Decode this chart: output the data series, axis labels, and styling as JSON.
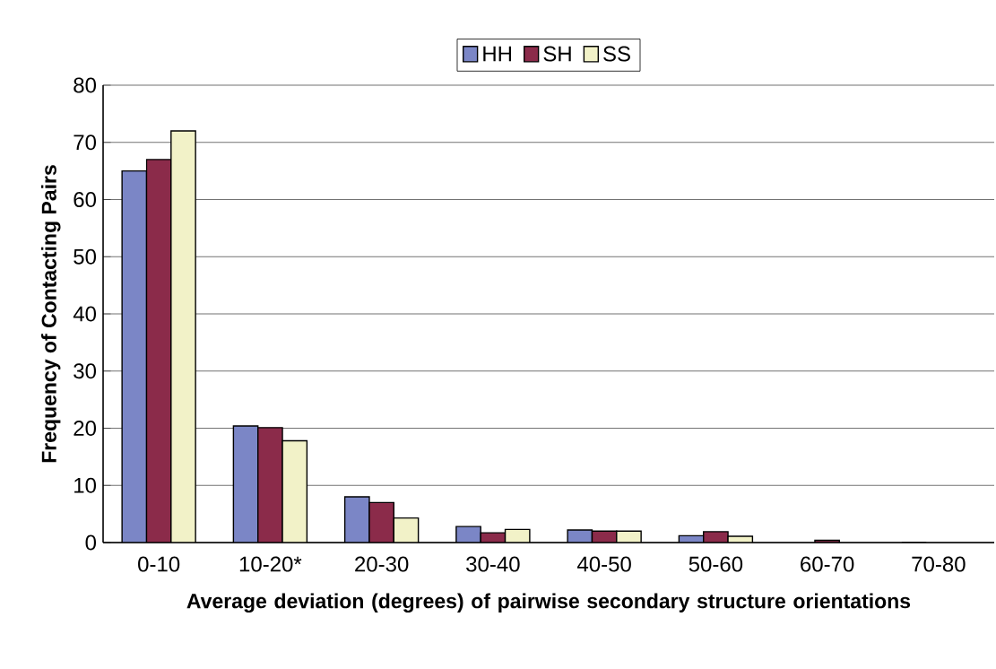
{
  "chart_data": {
    "type": "bar",
    "xlabel": "Average deviation (degrees) of pairwise secondary structure orientations",
    "ylabel": "Frequency of Contacting Pairs",
    "categories": [
      "0-10",
      "10-20*",
      "20-30",
      "30-40",
      "40-50",
      "50-60",
      "60-70",
      "70-80"
    ],
    "series": [
      {
        "name": "HH",
        "color": "#7b86c6",
        "values": [
          65,
          20.4,
          8.0,
          2.8,
          2.2,
          1.2,
          null,
          0
        ]
      },
      {
        "name": "SH",
        "color": "#8b2b4a",
        "values": [
          67,
          20.1,
          7.0,
          1.7,
          2.0,
          1.9,
          0.4,
          null
        ]
      },
      {
        "name": "SS",
        "color": "#f2f2c8",
        "values": [
          72,
          17.8,
          4.3,
          2.3,
          2.0,
          1.1,
          null,
          null
        ]
      }
    ],
    "ylim": [
      0,
      80
    ],
    "yticks": [
      0,
      10,
      20,
      30,
      40,
      50,
      60,
      70,
      80
    ],
    "grid": "y",
    "legend": "top"
  }
}
